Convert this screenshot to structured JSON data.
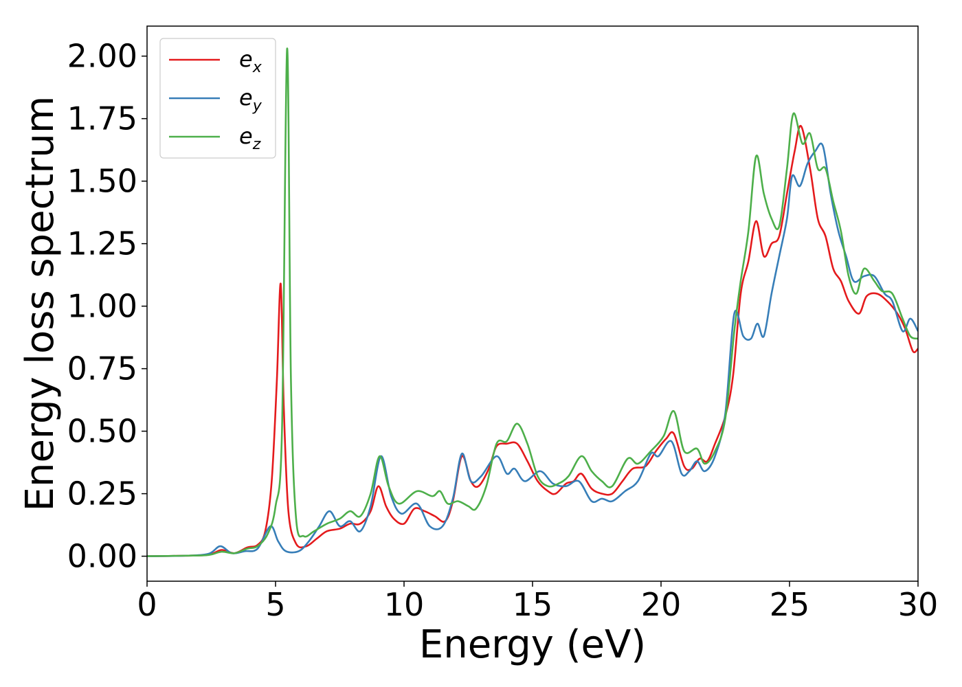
{
  "chart_data": {
    "type": "line",
    "title": "",
    "xlabel": "Energy (eV)",
    "ylabel": "Energy loss spectrum",
    "xlim": [
      0,
      30
    ],
    "ylim": [
      -0.1,
      2.12
    ],
    "xticks": [
      0,
      5,
      10,
      15,
      20,
      25,
      30
    ],
    "xtick_labels": [
      "0",
      "5",
      "10",
      "15",
      "20",
      "25",
      "30"
    ],
    "yticks": [
      0,
      0.25,
      0.5,
      0.75,
      1.0,
      1.25,
      1.5,
      1.75,
      2.0
    ],
    "ytick_labels": [
      "0.00",
      "0.25",
      "0.50",
      "0.75",
      "1.00",
      "1.25",
      "1.50",
      "1.75",
      "2.00"
    ],
    "grid": false,
    "legend": "top-left",
    "series": [
      {
        "name": "e_x",
        "label_base": "e",
        "label_sub": "x",
        "color": "#e41a1c",
        "points": [
          [
            0,
            0
          ],
          [
            1.5,
            0.002
          ],
          [
            2.4,
            0.006
          ],
          [
            2.9,
            0.025
          ],
          [
            3.4,
            0.012
          ],
          [
            3.9,
            0.035
          ],
          [
            4.3,
            0.045
          ],
          [
            4.6,
            0.1
          ],
          [
            4.85,
            0.3
          ],
          [
            5.05,
            0.7
          ],
          [
            5.2,
            1.09
          ],
          [
            5.32,
            0.6
          ],
          [
            5.5,
            0.18
          ],
          [
            5.8,
            0.05
          ],
          [
            6.2,
            0.04
          ],
          [
            6.6,
            0.07
          ],
          [
            7.0,
            0.1
          ],
          [
            7.5,
            0.11
          ],
          [
            7.9,
            0.13
          ],
          [
            8.3,
            0.13
          ],
          [
            8.7,
            0.18
          ],
          [
            9.0,
            0.28
          ],
          [
            9.3,
            0.2
          ],
          [
            9.6,
            0.15
          ],
          [
            10.0,
            0.13
          ],
          [
            10.4,
            0.19
          ],
          [
            10.8,
            0.18
          ],
          [
            11.2,
            0.16
          ],
          [
            11.6,
            0.14
          ],
          [
            11.9,
            0.22
          ],
          [
            12.25,
            0.4
          ],
          [
            12.6,
            0.3
          ],
          [
            12.9,
            0.28
          ],
          [
            13.3,
            0.35
          ],
          [
            13.6,
            0.44
          ],
          [
            14.0,
            0.45
          ],
          [
            14.4,
            0.45
          ],
          [
            14.8,
            0.38
          ],
          [
            15.2,
            0.3
          ],
          [
            15.6,
            0.26
          ],
          [
            15.9,
            0.25
          ],
          [
            16.3,
            0.29
          ],
          [
            16.6,
            0.3
          ],
          [
            16.9,
            0.33
          ],
          [
            17.3,
            0.27
          ],
          [
            17.7,
            0.25
          ],
          [
            18.1,
            0.25
          ],
          [
            18.5,
            0.3
          ],
          [
            18.9,
            0.35
          ],
          [
            19.4,
            0.36
          ],
          [
            19.8,
            0.42
          ],
          [
            20.2,
            0.47
          ],
          [
            20.5,
            0.49
          ],
          [
            20.9,
            0.36
          ],
          [
            21.2,
            0.35
          ],
          [
            21.5,
            0.39
          ],
          [
            21.8,
            0.38
          ],
          [
            22.1,
            0.45
          ],
          [
            22.5,
            0.56
          ],
          [
            22.8,
            0.72
          ],
          [
            23.1,
            1.05
          ],
          [
            23.4,
            1.18
          ],
          [
            23.7,
            1.34
          ],
          [
            24.0,
            1.2
          ],
          [
            24.3,
            1.25
          ],
          [
            24.6,
            1.28
          ],
          [
            24.9,
            1.45
          ],
          [
            25.2,
            1.62
          ],
          [
            25.45,
            1.72
          ],
          [
            25.8,
            1.55
          ],
          [
            26.1,
            1.35
          ],
          [
            26.4,
            1.28
          ],
          [
            26.7,
            1.15
          ],
          [
            27.0,
            1.1
          ],
          [
            27.3,
            1.02
          ],
          [
            27.7,
            0.97
          ],
          [
            28.0,
            1.04
          ],
          [
            28.4,
            1.05
          ],
          [
            28.8,
            1.02
          ],
          [
            29.2,
            0.97
          ],
          [
            29.5,
            0.91
          ],
          [
            29.8,
            0.82
          ],
          [
            30.0,
            0.83
          ]
        ]
      },
      {
        "name": "e_y",
        "label_base": "e",
        "label_sub": "y",
        "color": "#377eb8",
        "points": [
          [
            0,
            0
          ],
          [
            1.5,
            0.002
          ],
          [
            2.4,
            0.01
          ],
          [
            2.85,
            0.04
          ],
          [
            3.3,
            0.012
          ],
          [
            3.8,
            0.02
          ],
          [
            4.3,
            0.03
          ],
          [
            4.8,
            0.12
          ],
          [
            5.1,
            0.06
          ],
          [
            5.4,
            0.02
          ],
          [
            5.9,
            0.02
          ],
          [
            6.3,
            0.06
          ],
          [
            6.7,
            0.12
          ],
          [
            7.1,
            0.18
          ],
          [
            7.5,
            0.12
          ],
          [
            7.9,
            0.14
          ],
          [
            8.3,
            0.1
          ],
          [
            8.7,
            0.2
          ],
          [
            9.1,
            0.4
          ],
          [
            9.5,
            0.24
          ],
          [
            9.9,
            0.17
          ],
          [
            10.5,
            0.21
          ],
          [
            11.0,
            0.12
          ],
          [
            11.5,
            0.12
          ],
          [
            11.9,
            0.23
          ],
          [
            12.25,
            0.41
          ],
          [
            12.6,
            0.3
          ],
          [
            13.0,
            0.32
          ],
          [
            13.6,
            0.4
          ],
          [
            14.0,
            0.33
          ],
          [
            14.3,
            0.35
          ],
          [
            14.7,
            0.3
          ],
          [
            15.3,
            0.34
          ],
          [
            15.8,
            0.29
          ],
          [
            16.3,
            0.28
          ],
          [
            16.8,
            0.3
          ],
          [
            17.3,
            0.22
          ],
          [
            17.7,
            0.23
          ],
          [
            18.1,
            0.22
          ],
          [
            18.6,
            0.26
          ],
          [
            19.1,
            0.3
          ],
          [
            19.6,
            0.41
          ],
          [
            19.9,
            0.4
          ],
          [
            20.4,
            0.46
          ],
          [
            20.8,
            0.33
          ],
          [
            21.1,
            0.34
          ],
          [
            21.4,
            0.38
          ],
          [
            21.7,
            0.34
          ],
          [
            22.1,
            0.4
          ],
          [
            22.5,
            0.57
          ],
          [
            22.85,
            0.97
          ],
          [
            23.2,
            0.88
          ],
          [
            23.5,
            0.87
          ],
          [
            23.75,
            0.93
          ],
          [
            24.0,
            0.88
          ],
          [
            24.3,
            1.05
          ],
          [
            24.6,
            1.2
          ],
          [
            24.9,
            1.35
          ],
          [
            25.1,
            1.52
          ],
          [
            25.4,
            1.48
          ],
          [
            25.7,
            1.57
          ],
          [
            26.0,
            1.62
          ],
          [
            26.3,
            1.64
          ],
          [
            26.6,
            1.45
          ],
          [
            26.9,
            1.3
          ],
          [
            27.2,
            1.2
          ],
          [
            27.5,
            1.1
          ],
          [
            27.9,
            1.12
          ],
          [
            28.3,
            1.12
          ],
          [
            28.7,
            1.05
          ],
          [
            29.0,
            1.02
          ],
          [
            29.4,
            0.9
          ],
          [
            29.7,
            0.95
          ],
          [
            30.0,
            0.9
          ]
        ]
      },
      {
        "name": "e_z",
        "label_base": "e",
        "label_sub": "z",
        "color": "#4daf4a",
        "points": [
          [
            0,
            0
          ],
          [
            1.5,
            0.002
          ],
          [
            2.4,
            0.005
          ],
          [
            2.9,
            0.018
          ],
          [
            3.4,
            0.012
          ],
          [
            3.9,
            0.03
          ],
          [
            4.3,
            0.04
          ],
          [
            4.7,
            0.09
          ],
          [
            5.0,
            0.2
          ],
          [
            5.25,
            0.5
          ],
          [
            5.45,
            2.03
          ],
          [
            5.6,
            0.7
          ],
          [
            5.8,
            0.15
          ],
          [
            6.1,
            0.08
          ],
          [
            6.5,
            0.1
          ],
          [
            7.0,
            0.13
          ],
          [
            7.5,
            0.15
          ],
          [
            7.9,
            0.18
          ],
          [
            8.3,
            0.16
          ],
          [
            8.7,
            0.25
          ],
          [
            9.05,
            0.4
          ],
          [
            9.4,
            0.28
          ],
          [
            9.8,
            0.21
          ],
          [
            10.5,
            0.26
          ],
          [
            11.1,
            0.24
          ],
          [
            11.4,
            0.26
          ],
          [
            11.7,
            0.21
          ],
          [
            12.1,
            0.22
          ],
          [
            12.5,
            0.2
          ],
          [
            12.8,
            0.19
          ],
          [
            13.2,
            0.28
          ],
          [
            13.6,
            0.45
          ],
          [
            14.0,
            0.46
          ],
          [
            14.4,
            0.53
          ],
          [
            14.8,
            0.45
          ],
          [
            15.2,
            0.32
          ],
          [
            15.6,
            0.28
          ],
          [
            16.0,
            0.29
          ],
          [
            16.4,
            0.32
          ],
          [
            16.9,
            0.4
          ],
          [
            17.3,
            0.34
          ],
          [
            17.7,
            0.3
          ],
          [
            18.1,
            0.28
          ],
          [
            18.7,
            0.39
          ],
          [
            19.1,
            0.37
          ],
          [
            19.6,
            0.42
          ],
          [
            20.1,
            0.48
          ],
          [
            20.5,
            0.58
          ],
          [
            20.9,
            0.42
          ],
          [
            21.4,
            0.43
          ],
          [
            21.7,
            0.37
          ],
          [
            22.1,
            0.42
          ],
          [
            22.5,
            0.55
          ],
          [
            22.85,
            0.9
          ],
          [
            23.1,
            1.1
          ],
          [
            23.4,
            1.3
          ],
          [
            23.7,
            1.6
          ],
          [
            24.0,
            1.45
          ],
          [
            24.3,
            1.35
          ],
          [
            24.6,
            1.32
          ],
          [
            24.9,
            1.55
          ],
          [
            25.15,
            1.77
          ],
          [
            25.5,
            1.65
          ],
          [
            25.8,
            1.69
          ],
          [
            26.1,
            1.55
          ],
          [
            26.4,
            1.55
          ],
          [
            26.7,
            1.42
          ],
          [
            27.0,
            1.3
          ],
          [
            27.3,
            1.12
          ],
          [
            27.6,
            1.05
          ],
          [
            27.9,
            1.15
          ],
          [
            28.3,
            1.1
          ],
          [
            28.6,
            1.06
          ],
          [
            29.0,
            1.05
          ],
          [
            29.4,
            0.95
          ],
          [
            29.7,
            0.88
          ],
          [
            30.0,
            0.87
          ]
        ]
      }
    ]
  }
}
